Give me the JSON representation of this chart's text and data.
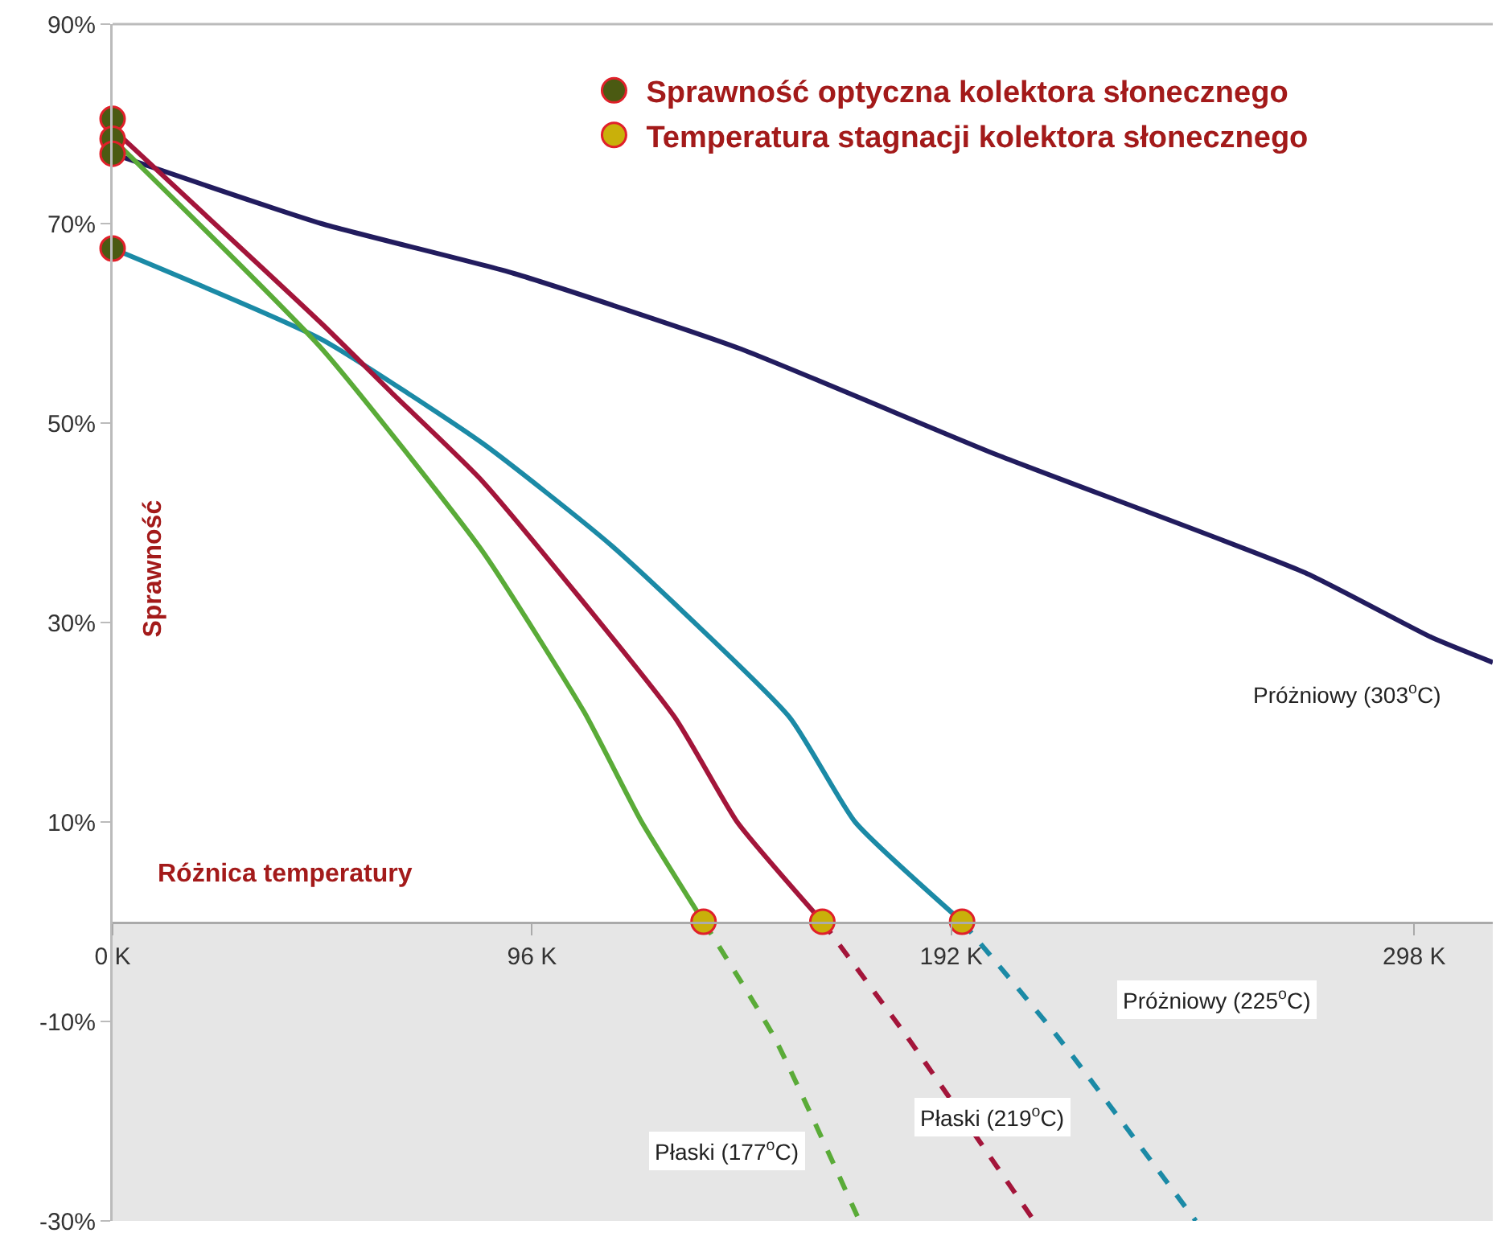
{
  "chart_data": {
    "type": "line",
    "xlabel": "Różnica temperatury",
    "ylabel": "Sprawność",
    "xlim": [
      0,
      316
    ],
    "xticks": [
      {
        "value": 0,
        "label": "0 K"
      },
      {
        "value": 96,
        "label": "96 K"
      },
      {
        "value": 192,
        "label": "192 K"
      },
      {
        "value": 298,
        "label": "298 K"
      }
    ],
    "ylim": [
      -30,
      90
    ],
    "yticks": [
      {
        "value": 90,
        "label": "90%"
      },
      {
        "value": 70,
        "label": "70%"
      },
      {
        "value": 50,
        "label": "50%"
      },
      {
        "value": 30,
        "label": "30%"
      },
      {
        "value": 10,
        "label": "10%"
      },
      {
        "value": -10,
        "label": "-10%"
      },
      {
        "value": -30,
        "label": "-30%"
      }
    ],
    "grid": false,
    "legend": "top",
    "bands": [
      {
        "axis": "y",
        "from": -30,
        "to": 0,
        "color": "#e6e6e6"
      }
    ],
    "series": [
      {
        "color": "#221c5e",
        "line_style": "solid",
        "x": [
          0,
          47.8,
          91.9,
          143.4,
          202,
          273,
          302,
          316
        ],
        "values": [
          77,
          70,
          65,
          57.5,
          46.9,
          35,
          28.5,
          26
        ]
      },
      {
        "color": "#1b8aa6",
        "line_style": "solid",
        "x": [
          0,
          47.8,
          84.6,
          114,
          155,
          170,
          194.5
        ],
        "values": [
          67.5,
          58.4,
          48,
          37.8,
          20.5,
          10,
          0
        ]
      },
      {
        "color": "#1b8aa6",
        "line_style": "dashed",
        "x": [
          194.5,
          216.5,
          248
        ],
        "values": [
          0,
          -11.6,
          -30
        ]
      },
      {
        "color": "#a3153a",
        "line_style": "solid",
        "x": [
          0,
          47.8,
          64,
          84.6,
          128.7,
          143,
          162.5
        ],
        "values": [
          79.5,
          60,
          53,
          44.2,
          20.5,
          10,
          0
        ]
      },
      {
        "color": "#a3153a",
        "line_style": "dashed",
        "x": [
          162.5,
          182,
          211
        ],
        "values": [
          0,
          -11.6,
          -30
        ]
      },
      {
        "color": "#5aab38",
        "line_style": "solid",
        "x": [
          0,
          47.8,
          84.6,
          108,
          121,
          135.3
        ],
        "values": [
          78.5,
          57.5,
          37.2,
          21,
          10.1,
          0
        ]
      },
      {
        "color": "#5aab38",
        "line_style": "dashed",
        "x": [
          135.3,
          151.5,
          171
        ],
        "values": [
          0,
          -11.6,
          -30
        ]
      },
      {
        "type": "scatter",
        "name": "Sprawność optyczna kolektora słonecznego",
        "color": "#4b5a12",
        "marker": "circle",
        "x": [
          0,
          0,
          0,
          0
        ],
        "values": [
          80.5,
          78.5,
          77,
          67.5
        ]
      },
      {
        "type": "scatter",
        "name": "Temperatura stagnacji kolektora słonecznego",
        "color": "#c9b00a",
        "marker": "circle",
        "x": [
          135.3,
          162.5,
          194.5
        ],
        "values": [
          0,
          0,
          0
        ]
      }
    ],
    "annotations": [
      "Próżniowy (303$^{o}$C)",
      "Próżniowy (225$^{o}$C)",
      "Płaski (219$^{o}$C)",
      "Płaski (177$^{o}$C)"
    ]
  }
}
